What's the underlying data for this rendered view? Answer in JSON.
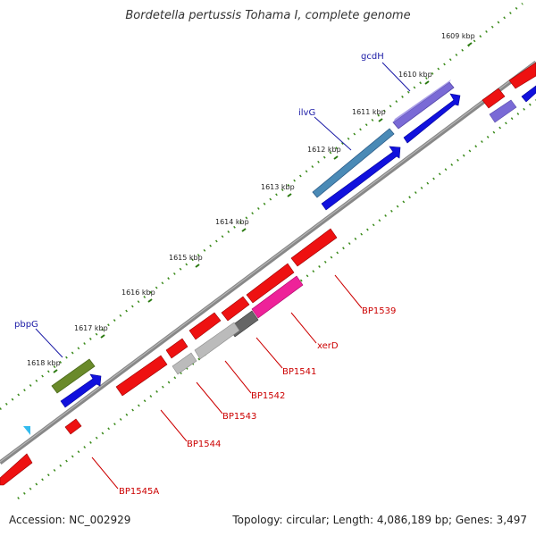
{
  "title": "Bordetella pertussis Tohama I, complete genome",
  "footer": {
    "accession": "Accession: NC_002929",
    "topology": "Topology: circular; Length: 4,086,189 bp; Genes: 3,497"
  },
  "ruler_ticks": [
    "1609 kbp",
    "1610 kbp",
    "1611 kbp",
    "1612 kbp",
    "1613 kbp",
    "1614 kbp",
    "1615 kbp",
    "1616 kbp",
    "1617 kbp",
    "1618 kbp"
  ],
  "gene_labels": {
    "named": [
      "gcdH",
      "ilvG",
      "pbpG"
    ],
    "locus": [
      "BP1539",
      "xerD",
      "BP1541",
      "BP1542",
      "BP1543",
      "BP1544",
      "BP1545A"
    ]
  },
  "colors": {
    "backbone": "#777777",
    "named_label": "#1a1aa6",
    "locus_label": "#cc0000",
    "dots_outer": "#3a8a1a",
    "dots_inner": "#3a8a1a",
    "red": "#ee1111",
    "blue": "#1111dd",
    "steel": "#4a8ab6",
    "purple": "#7a6ad6",
    "olive": "#6a8a2a",
    "magenta": "#ee2299",
    "gray_dark": "#666666",
    "gray_light": "#bbbbbb",
    "cyan": "#33bbee"
  }
}
